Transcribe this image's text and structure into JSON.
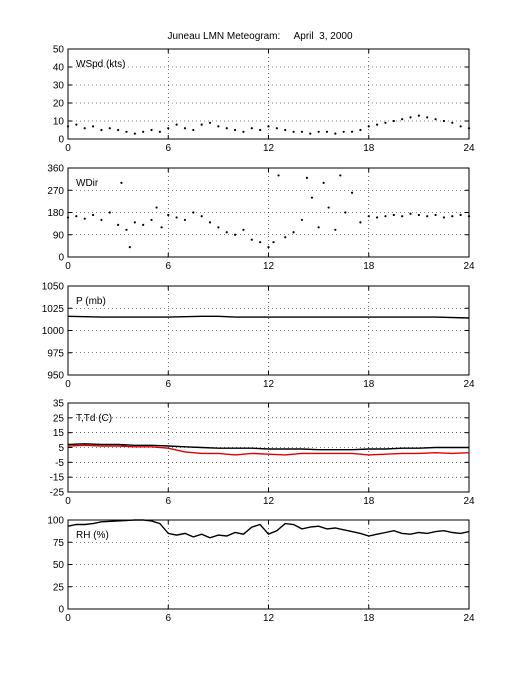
{
  "title": "Juneau LMN Meteogram:     April  3, 2000",
  "chart_data": [
    {
      "type": "scatter",
      "label": "WSpd (kts)",
      "xlim": [
        0,
        24
      ],
      "ylim": [
        0,
        50
      ],
      "xticks": [
        0,
        6,
        12,
        18,
        24
      ],
      "yticks": [
        0,
        10,
        20,
        30,
        40,
        50
      ],
      "grid": true,
      "series": [
        {
          "color": "#000000",
          "style": "dots",
          "x": [
            0,
            0.5,
            1,
            1.5,
            2,
            2.5,
            3,
            3.5,
            4,
            4.5,
            5,
            5.5,
            6,
            6.5,
            7,
            7.5,
            8,
            8.5,
            9,
            9.5,
            10,
            10.5,
            11,
            11.5,
            12,
            12.5,
            13,
            13.5,
            14,
            14.5,
            15,
            15.5,
            16,
            16.5,
            17,
            17.5,
            18,
            18.5,
            19,
            19.5,
            20,
            20.5,
            21,
            21.5,
            22,
            22.5,
            23,
            23.5,
            24
          ],
          "y": [
            7,
            8,
            6,
            7,
            5,
            6,
            5,
            4,
            3,
            4,
            5,
            4,
            6,
            8,
            6,
            5,
            8,
            9,
            7,
            6,
            5,
            4,
            6,
            5,
            7,
            6,
            5,
            4,
            4,
            3,
            4,
            4,
            3,
            4,
            4,
            5,
            7,
            8,
            9,
            10,
            11,
            12,
            13,
            12,
            11,
            10,
            9,
            7,
            6
          ]
        }
      ]
    },
    {
      "type": "scatter",
      "label": "WDir",
      "xlim": [
        0,
        24
      ],
      "ylim": [
        0,
        360
      ],
      "xticks": [
        0,
        6,
        12,
        18,
        24
      ],
      "yticks": [
        0,
        90,
        180,
        270,
        360
      ],
      "grid": true,
      "series": [
        {
          "color": "#000000",
          "style": "dots",
          "x": [
            0,
            0.5,
            1,
            1.5,
            2,
            2.5,
            3,
            3.2,
            3.5,
            3.7,
            4,
            4.5,
            5,
            5.3,
            5.6,
            6,
            6.5,
            7,
            7.5,
            8,
            8.5,
            9,
            9.5,
            10,
            10.5,
            11,
            11.5,
            12,
            12.3,
            12.6,
            13,
            13.5,
            14,
            14.3,
            14.6,
            15,
            15.3,
            15.6,
            16,
            16.3,
            16.6,
            17,
            17.5,
            18,
            18.5,
            19,
            19.5,
            20,
            20.5,
            21,
            21.5,
            22,
            22.5,
            23,
            23.5,
            24
          ],
          "y": [
            160,
            165,
            155,
            170,
            150,
            180,
            130,
            300,
            110,
            40,
            140,
            130,
            150,
            200,
            120,
            170,
            160,
            150,
            180,
            165,
            140,
            120,
            100,
            90,
            110,
            70,
            60,
            40,
            60,
            330,
            80,
            100,
            150,
            320,
            240,
            120,
            300,
            200,
            110,
            330,
            180,
            260,
            140,
            165,
            160,
            165,
            170,
            165,
            175,
            170,
            165,
            170,
            160,
            165,
            170,
            165
          ]
        }
      ]
    },
    {
      "type": "line",
      "label": "P (mb)",
      "xlim": [
        0,
        24
      ],
      "ylim": [
        950,
        1050
      ],
      "xticks": [
        0,
        6,
        12,
        18,
        24
      ],
      "yticks": [
        950,
        975,
        1000,
        1025,
        1050
      ],
      "grid": true,
      "series": [
        {
          "color": "#000000",
          "x": [
            0,
            2,
            4,
            6,
            8,
            9,
            10,
            12,
            14,
            16,
            18,
            20,
            22,
            24
          ],
          "y": [
            1016,
            1015,
            1015,
            1015,
            1016,
            1016,
            1015,
            1015,
            1015,
            1015,
            1015,
            1015,
            1015,
            1014
          ]
        }
      ]
    },
    {
      "type": "line",
      "label": "T,Td (C)",
      "xlim": [
        0,
        24
      ],
      "ylim": [
        -25,
        35
      ],
      "xticks": [
        0,
        6,
        12,
        18,
        24
      ],
      "yticks": [
        -25,
        -15,
        -5,
        5,
        15,
        25,
        35
      ],
      "grid": true,
      "series": [
        {
          "color": "#000000",
          "x": [
            0,
            1,
            2,
            3,
            4,
            5,
            6,
            7,
            8,
            9,
            10,
            11,
            12,
            13,
            14,
            15,
            16,
            17,
            18,
            19,
            20,
            21,
            22,
            23,
            24
          ],
          "y": [
            7,
            7.5,
            7,
            7,
            6.5,
            6.5,
            6,
            5.5,
            5,
            4.5,
            4.5,
            4.5,
            4,
            4,
            4,
            3.5,
            3.5,
            3.5,
            4,
            4,
            4.5,
            4.5,
            5,
            5,
            5
          ]
        },
        {
          "color": "#e00000",
          "x": [
            0,
            1,
            2,
            3,
            4,
            5,
            6,
            7,
            8,
            9,
            10,
            11,
            12,
            13,
            14,
            15,
            16,
            17,
            18,
            19,
            20,
            21,
            22,
            23,
            24
          ],
          "y": [
            6,
            6.5,
            6,
            6,
            5.5,
            5.5,
            4.5,
            2,
            1,
            1,
            0,
            1,
            0.5,
            0,
            1,
            1,
            1,
            1,
            0,
            0.5,
            1,
            1,
            1.5,
            1,
            1.5
          ]
        }
      ]
    },
    {
      "type": "line",
      "label": "RH (%)",
      "xlim": [
        0,
        24
      ],
      "ylim": [
        0,
        100
      ],
      "xticks": [
        0,
        6,
        12,
        18,
        24
      ],
      "yticks": [
        0,
        25,
        50,
        75,
        100
      ],
      "grid": true,
      "series": [
        {
          "color": "#000000",
          "x": [
            0,
            0.5,
            1,
            1.5,
            2,
            3,
            4,
            4.5,
            5,
            5.5,
            6,
            6.5,
            7,
            7.5,
            8,
            8.5,
            9,
            9.5,
            10,
            10.5,
            11,
            11.5,
            12,
            12.5,
            13,
            13.5,
            14,
            14.5,
            15,
            15.5,
            16,
            16.5,
            17,
            17.5,
            18,
            18.5,
            19,
            19.5,
            20,
            20.5,
            21,
            21.5,
            22,
            22.5,
            23,
            23.5,
            24
          ],
          "y": [
            93,
            95,
            95,
            96,
            98,
            99,
            100,
            100,
            99,
            96,
            85,
            83,
            85,
            81,
            84,
            80,
            83,
            82,
            86,
            84,
            92,
            95,
            84,
            88,
            96,
            95,
            90,
            92,
            93,
            90,
            91,
            89,
            87,
            85,
            82,
            84,
            86,
            88,
            85,
            84,
            86,
            85,
            87,
            88,
            86,
            85,
            87
          ]
        }
      ]
    }
  ]
}
